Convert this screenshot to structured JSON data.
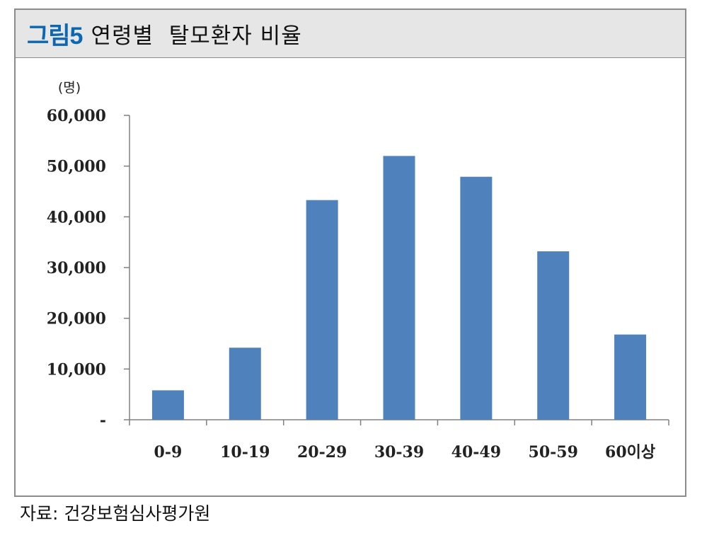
{
  "figure": {
    "label": "그림5",
    "title": "연령별  탈모환자 비율"
  },
  "source": "자료: 건강보험심사평가원",
  "chart_data": {
    "type": "bar",
    "unit_label": "(명)",
    "categories": [
      "0-9",
      "10-19",
      "20-29",
      "30-39",
      "40-49",
      "50-59",
      "60이상"
    ],
    "values": [
      5800,
      14200,
      43300,
      52000,
      47900,
      33200,
      16800
    ],
    "ylim": [
      0,
      60000
    ],
    "yticks": [
      0,
      10000,
      20000,
      30000,
      40000,
      50000,
      60000
    ],
    "ytick_labels": [
      "-",
      "10,000",
      "20,000",
      "30,000",
      "40,000",
      "50,000",
      "60,000"
    ],
    "grid": false,
    "legend": "none",
    "bar_color": "#4f81bd"
  }
}
